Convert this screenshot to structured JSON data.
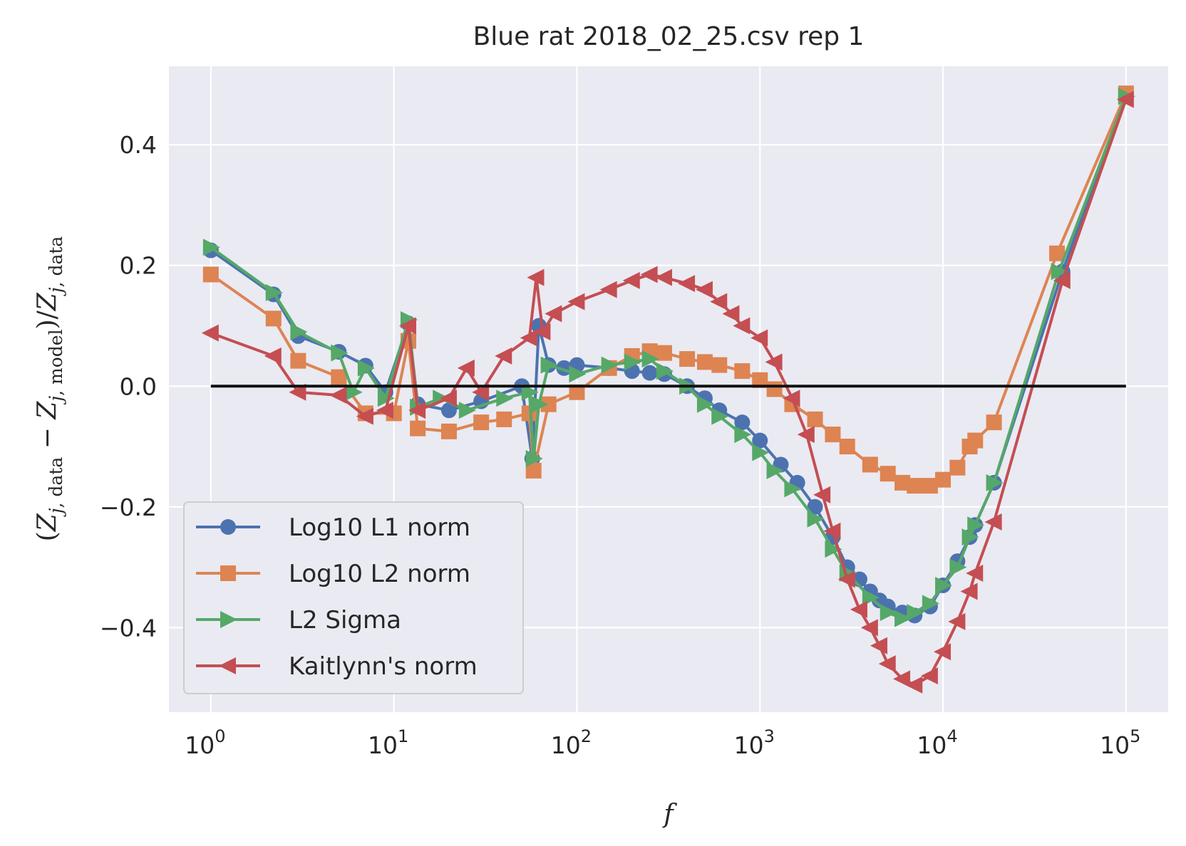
{
  "chart_data": {
    "type": "line",
    "title": "Blue rat 2018_02_25.csv rep 1",
    "xlabel": "f",
    "ylabel": "(Z_{j, data} − Z_{j, model})/Z_{j, data}",
    "xscale": "log",
    "xlim": [
      0.59,
      170000
    ],
    "ylim": [
      -0.54,
      0.53
    ],
    "x_ticks": [
      {
        "value": 1,
        "base": "10",
        "exp": "0"
      },
      {
        "value": 10,
        "base": "10",
        "exp": "1"
      },
      {
        "value": 100,
        "base": "10",
        "exp": "2"
      },
      {
        "value": 1000,
        "base": "10",
        "exp": "3"
      },
      {
        "value": 10000,
        "base": "10",
        "exp": "4"
      },
      {
        "value": 100000,
        "base": "10",
        "exp": "5"
      }
    ],
    "y_ticks": [
      {
        "value": 0.4,
        "label": "0.4"
      },
      {
        "value": 0.2,
        "label": "0.2"
      },
      {
        "value": 0.0,
        "label": "0.0"
      },
      {
        "value": -0.2,
        "label": "−0.2"
      },
      {
        "value": -0.4,
        "label": "−0.4"
      }
    ],
    "grid": true,
    "legend_position": "lower-left",
    "reference_line": {
      "y": 0,
      "x_from": 1,
      "x_to": 100000,
      "color": "#111111"
    },
    "series": [
      {
        "name": "Log10 L1 norm",
        "color": "#4c72b0",
        "marker": "circle",
        "points": [
          [
            1,
            0.225
          ],
          [
            2.2,
            0.152
          ],
          [
            3,
            0.083
          ],
          [
            5,
            0.057
          ],
          [
            7,
            0.034
          ],
          [
            9,
            -0.01
          ],
          [
            12,
            0.104
          ],
          [
            13.5,
            -0.03
          ],
          [
            20,
            -0.04
          ],
          [
            30,
            -0.025
          ],
          [
            50,
            0.0
          ],
          [
            57,
            -0.12
          ],
          [
            62,
            0.1
          ],
          [
            70,
            0.035
          ],
          [
            85,
            0.03
          ],
          [
            100,
            0.035
          ],
          [
            150,
            0.03
          ],
          [
            200,
            0.025
          ],
          [
            250,
            0.022
          ],
          [
            300,
            0.02
          ],
          [
            400,
            0.0
          ],
          [
            500,
            -0.02
          ],
          [
            600,
            -0.04
          ],
          [
            800,
            -0.06
          ],
          [
            1000,
            -0.09
          ],
          [
            1300,
            -0.13
          ],
          [
            1600,
            -0.16
          ],
          [
            2000,
            -0.2
          ],
          [
            2500,
            -0.25
          ],
          [
            3000,
            -0.3
          ],
          [
            3500,
            -0.32
          ],
          [
            4000,
            -0.34
          ],
          [
            4500,
            -0.355
          ],
          [
            5000,
            -0.365
          ],
          [
            6000,
            -0.375
          ],
          [
            7000,
            -0.38
          ],
          [
            8500,
            -0.365
          ],
          [
            10000,
            -0.33
          ],
          [
            12000,
            -0.29
          ],
          [
            14000,
            -0.25
          ],
          [
            15000,
            -0.23
          ],
          [
            19000,
            -0.16
          ],
          [
            45000,
            0.19
          ],
          [
            100000,
            0.48
          ]
        ]
      },
      {
        "name": "Log10 L2 norm",
        "color": "#dd8452",
        "marker": "square",
        "points": [
          [
            1,
            0.185
          ],
          [
            2.2,
            0.112
          ],
          [
            3,
            0.042
          ],
          [
            5,
            0.015
          ],
          [
            7,
            -0.045
          ],
          [
            10,
            -0.045
          ],
          [
            12,
            0.075
          ],
          [
            13.5,
            -0.07
          ],
          [
            20,
            -0.075
          ],
          [
            30,
            -0.06
          ],
          [
            40,
            -0.055
          ],
          [
            55,
            -0.045
          ],
          [
            58,
            -0.14
          ],
          [
            70,
            -0.03
          ],
          [
            100,
            -0.01
          ],
          [
            150,
            0.03
          ],
          [
            200,
            0.05
          ],
          [
            250,
            0.058
          ],
          [
            300,
            0.055
          ],
          [
            400,
            0.045
          ],
          [
            500,
            0.04
          ],
          [
            600,
            0.035
          ],
          [
            800,
            0.025
          ],
          [
            1000,
            0.01
          ],
          [
            1200,
            -0.005
          ],
          [
            1500,
            -0.03
          ],
          [
            2000,
            -0.055
          ],
          [
            2500,
            -0.08
          ],
          [
            3000,
            -0.1
          ],
          [
            4000,
            -0.13
          ],
          [
            5000,
            -0.145
          ],
          [
            6000,
            -0.16
          ],
          [
            7000,
            -0.165
          ],
          [
            8500,
            -0.165
          ],
          [
            10000,
            -0.155
          ],
          [
            12000,
            -0.135
          ],
          [
            14000,
            -0.1
          ],
          [
            15000,
            -0.09
          ],
          [
            19000,
            -0.06
          ],
          [
            42000,
            0.22
          ],
          [
            100000,
            0.485
          ]
        ]
      },
      {
        "name": "L2 Sigma",
        "color": "#55a868",
        "marker": "triangle-right",
        "points": [
          [
            1,
            0.23
          ],
          [
            2.2,
            0.155
          ],
          [
            3,
            0.09
          ],
          [
            5,
            0.055
          ],
          [
            6,
            -0.01
          ],
          [
            7,
            0.03
          ],
          [
            9,
            -0.02
          ],
          [
            12,
            0.11
          ],
          [
            13.5,
            -0.035
          ],
          [
            18,
            -0.02
          ],
          [
            25,
            -0.04
          ],
          [
            40,
            -0.02
          ],
          [
            55,
            -0.01
          ],
          [
            58,
            -0.12
          ],
          [
            62,
            -0.03
          ],
          [
            70,
            0.035
          ],
          [
            100,
            0.02
          ],
          [
            150,
            0.035
          ],
          [
            200,
            0.04
          ],
          [
            250,
            0.045
          ],
          [
            300,
            0.025
          ],
          [
            400,
            0.0
          ],
          [
            500,
            -0.03
          ],
          [
            600,
            -0.05
          ],
          [
            800,
            -0.08
          ],
          [
            1000,
            -0.11
          ],
          [
            1200,
            -0.14
          ],
          [
            1500,
            -0.17
          ],
          [
            2000,
            -0.22
          ],
          [
            2500,
            -0.27
          ],
          [
            3000,
            -0.31
          ],
          [
            4000,
            -0.35
          ],
          [
            5000,
            -0.375
          ],
          [
            6000,
            -0.385
          ],
          [
            7000,
            -0.375
          ],
          [
            8500,
            -0.36
          ],
          [
            10000,
            -0.33
          ],
          [
            12000,
            -0.3
          ],
          [
            14000,
            -0.25
          ],
          [
            15000,
            -0.23
          ],
          [
            19000,
            -0.16
          ],
          [
            43000,
            0.19
          ],
          [
            100000,
            0.48
          ]
        ]
      },
      {
        "name": "Kaitlynn's norm",
        "color": "#c44e52",
        "marker": "triangle-left",
        "points": [
          [
            1,
            0.088
          ],
          [
            2.2,
            0.05
          ],
          [
            3,
            -0.01
          ],
          [
            5,
            -0.015
          ],
          [
            7,
            -0.05
          ],
          [
            9,
            -0.04
          ],
          [
            12,
            0.1
          ],
          [
            13.5,
            -0.04
          ],
          [
            20,
            -0.02
          ],
          [
            25,
            0.03
          ],
          [
            30,
            -0.01
          ],
          [
            40,
            0.05
          ],
          [
            55,
            0.08
          ],
          [
            60,
            0.18
          ],
          [
            65,
            0.09
          ],
          [
            75,
            0.12
          ],
          [
            100,
            0.14
          ],
          [
            150,
            0.16
          ],
          [
            200,
            0.175
          ],
          [
            250,
            0.185
          ],
          [
            300,
            0.18
          ],
          [
            400,
            0.17
          ],
          [
            500,
            0.16
          ],
          [
            600,
            0.14
          ],
          [
            700,
            0.12
          ],
          [
            800,
            0.1
          ],
          [
            1000,
            0.08
          ],
          [
            1200,
            0.04
          ],
          [
            1500,
            -0.02
          ],
          [
            1800,
            -0.08
          ],
          [
            2200,
            -0.18
          ],
          [
            2500,
            -0.24
          ],
          [
            3000,
            -0.32
          ],
          [
            3500,
            -0.37
          ],
          [
            4000,
            -0.4
          ],
          [
            4500,
            -0.43
          ],
          [
            5000,
            -0.46
          ],
          [
            6000,
            -0.485
          ],
          [
            7000,
            -0.495
          ],
          [
            8500,
            -0.48
          ],
          [
            10000,
            -0.44
          ],
          [
            12000,
            -0.39
          ],
          [
            14000,
            -0.34
          ],
          [
            15000,
            -0.31
          ],
          [
            19000,
            -0.225
          ],
          [
            45000,
            0.175
          ],
          [
            100000,
            0.475
          ]
        ]
      }
    ]
  }
}
